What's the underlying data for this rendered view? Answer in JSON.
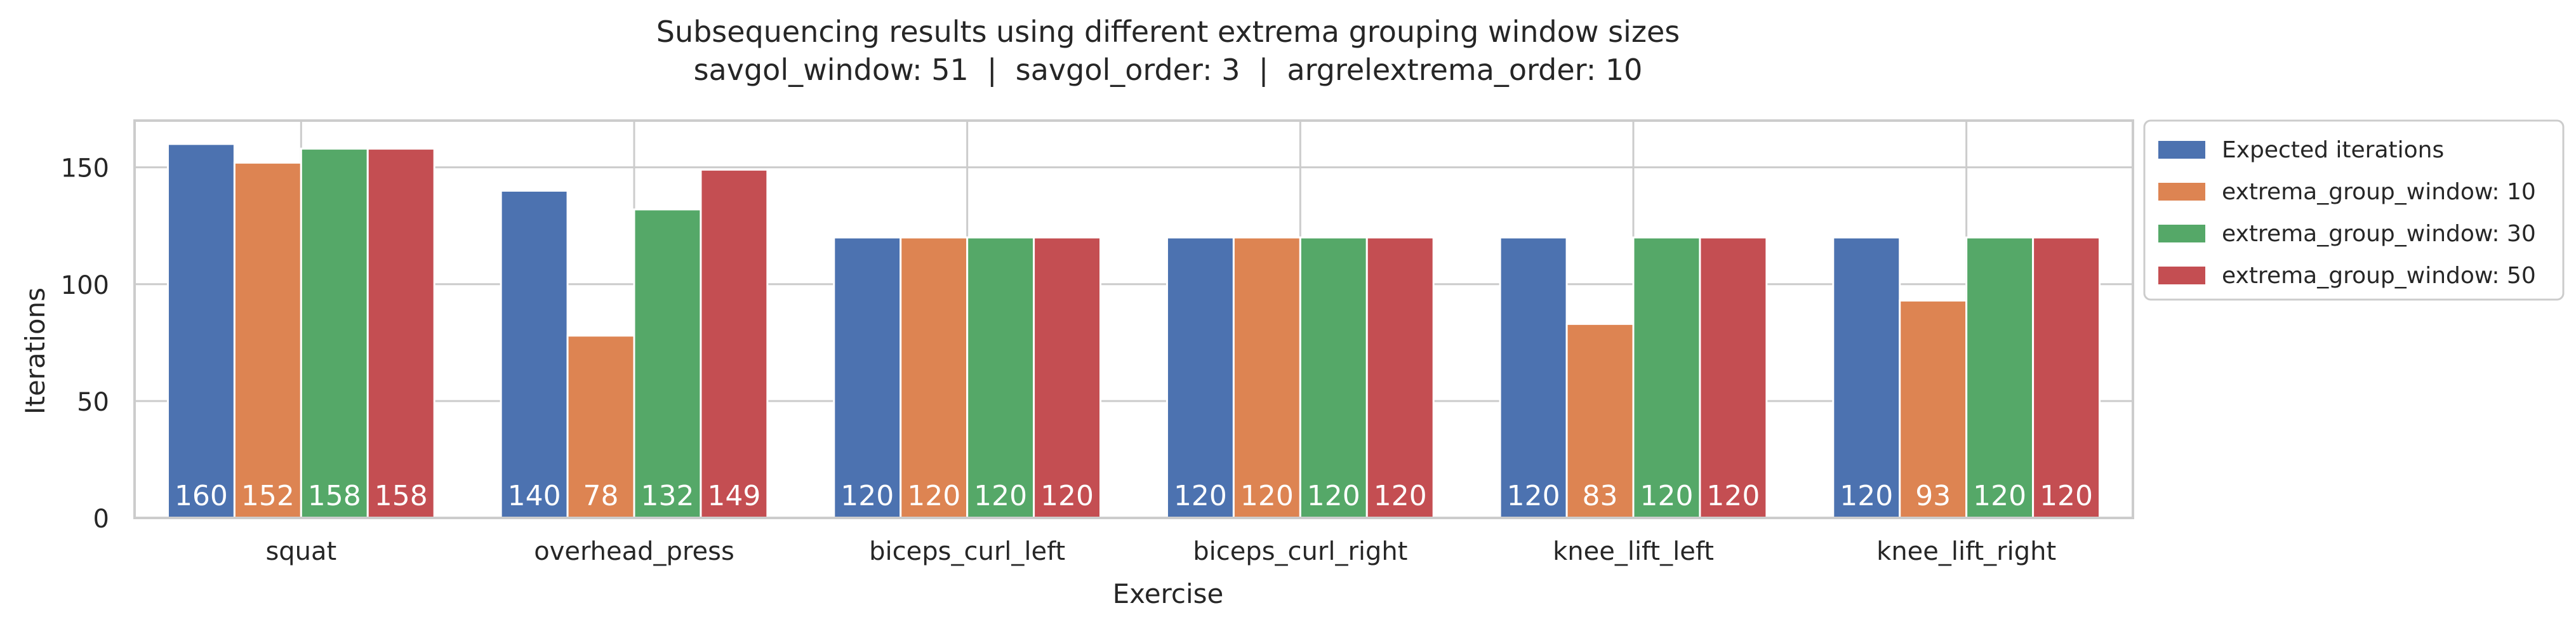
{
  "chart_data": {
    "type": "bar",
    "title": "Subsequencing results using different extrema grouping window sizes",
    "subtitle": "savgol_window: 51  |  savgol_order: 3  |  argrelextrema_order: 10",
    "xlabel": "Exercise",
    "ylabel": "Iterations",
    "ylim": [
      0,
      170
    ],
    "yticks": [
      0,
      50,
      100,
      150
    ],
    "grid": true,
    "legend_position": "outside-upper-right",
    "categories": [
      "squat",
      "overhead_press",
      "biceps_curl_left",
      "biceps_curl_right",
      "knee_lift_left",
      "knee_lift_right"
    ],
    "series": [
      {
        "name": "Expected iterations",
        "color": "#4c72b0",
        "values": [
          160,
          140,
          120,
          120,
          120,
          120
        ]
      },
      {
        "name": "extrema_group_window: 10",
        "color": "#dd8452",
        "values": [
          152,
          78,
          120,
          120,
          83,
          93
        ]
      },
      {
        "name": "extrema_group_window: 30",
        "color": "#55a868",
        "values": [
          158,
          132,
          120,
          120,
          120,
          120
        ]
      },
      {
        "name": "extrema_group_window: 50",
        "color": "#c44e52",
        "values": [
          158,
          149,
          120,
          120,
          120,
          120
        ]
      }
    ]
  }
}
